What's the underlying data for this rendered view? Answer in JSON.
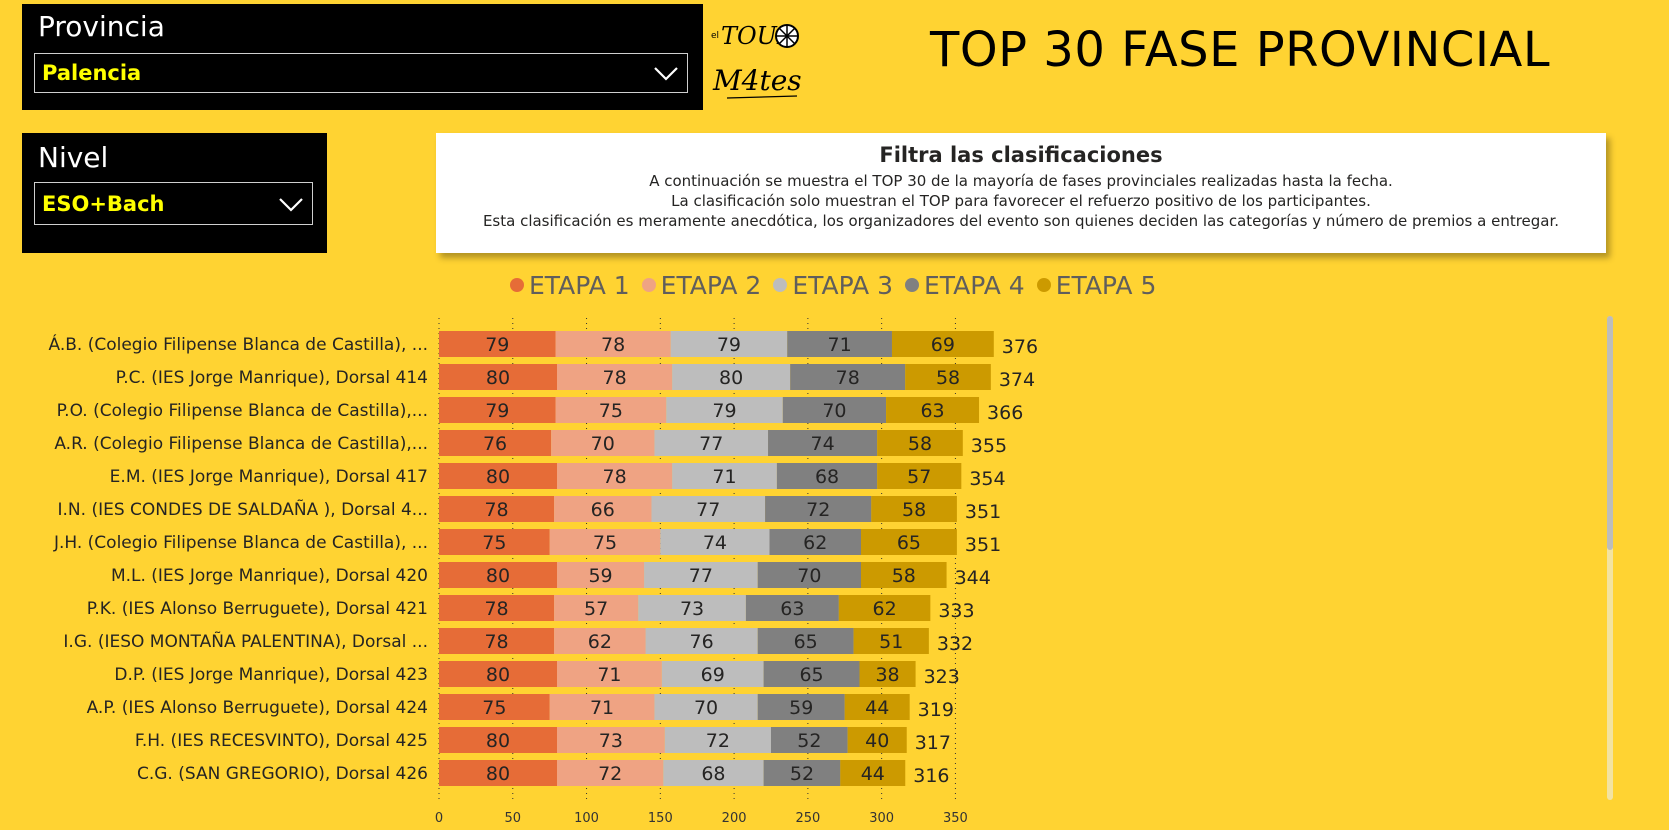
{
  "filters": {
    "provincia": {
      "title": "Provincia",
      "value": "Palencia"
    },
    "nivel": {
      "title": "Nivel",
      "value": "ESO+Bach"
    }
  },
  "logo": {
    "text_top": "TOUR",
    "text_bottom": "M4tes",
    "text_small": "el",
    "icon": "cyclist-wheel-logo"
  },
  "header": {
    "title": "TOP 30 FASE PROVINCIAL"
  },
  "info": {
    "title": "Filtra las clasificaciones",
    "lines": [
      "A continuación se muestra el TOP 30 de la mayoría de fases provinciales realizadas hasta la fecha.",
      "La clasificación solo muestran el TOP para favorecer el refuerzo positivo de los participantes.",
      "Esta clasificación es meramente anecdótica, los organizadores del evento son quienes deciden las categorías y número de premios a entregar."
    ]
  },
  "colors": {
    "background": "#FFD332",
    "etapa1": "#E66C37",
    "etapa2": "#EFA383",
    "etapa3": "#BDBDBD",
    "etapa4": "#808080",
    "etapa5": "#CC9A00"
  },
  "chart_data": {
    "type": "bar",
    "orientation": "horizontal",
    "stacked": true,
    "categories": [
      "Á.B. (Colegio Filipense Blanca de Castilla), ...",
      "P.C. (IES Jorge Manrique), Dorsal 414",
      "P.O. (Colegio Filipense Blanca de Castilla),...",
      "A.R. (Colegio Filipense Blanca de Castilla),...",
      "E.M. (IES Jorge Manrique), Dorsal 417",
      "I.N. (IES CONDES DE SALDAÑA ), Dorsal 4...",
      "J.H. (Colegio Filipense Blanca de Castilla), ...",
      "M.L. (IES Jorge Manrique), Dorsal 420",
      "P.K. (IES Alonso Berruguete), Dorsal 421",
      "I.G. (IESO MONTAÑA PALENTINA), Dorsal ...",
      "D.P. (IES Jorge Manrique), Dorsal 423",
      "A.P. (IES Alonso Berruguete), Dorsal 424",
      "F.H. (IES RECESVINTO), Dorsal 425",
      "C.G. (SAN GREGORIO), Dorsal 426"
    ],
    "series": [
      {
        "name": "ETAPA 1",
        "values": [
          79,
          80,
          79,
          76,
          80,
          78,
          75,
          80,
          78,
          78,
          80,
          75,
          80,
          80
        ]
      },
      {
        "name": "ETAPA 2",
        "values": [
          78,
          78,
          75,
          70,
          78,
          66,
          75,
          59,
          57,
          62,
          71,
          71,
          73,
          72
        ]
      },
      {
        "name": "ETAPA 3",
        "values": [
          79,
          80,
          79,
          77,
          71,
          77,
          74,
          77,
          73,
          76,
          69,
          70,
          72,
          68
        ]
      },
      {
        "name": "ETAPA 4",
        "values": [
          71,
          78,
          70,
          74,
          68,
          72,
          62,
          70,
          63,
          65,
          65,
          59,
          52,
          52
        ]
      },
      {
        "name": "ETAPA 5",
        "values": [
          69,
          58,
          63,
          58,
          57,
          58,
          65,
          58,
          62,
          51,
          38,
          44,
          40,
          44
        ]
      }
    ],
    "totals": [
      376,
      374,
      366,
      355,
      354,
      351,
      351,
      344,
      333,
      332,
      323,
      319,
      317,
      316
    ],
    "x_ticks": [
      0,
      50,
      100,
      150,
      200,
      250,
      300,
      350
    ],
    "xlim": [
      0,
      376
    ],
    "grid": "vertical-dotted",
    "legend": "top",
    "xlabel": "",
    "ylabel": ""
  }
}
